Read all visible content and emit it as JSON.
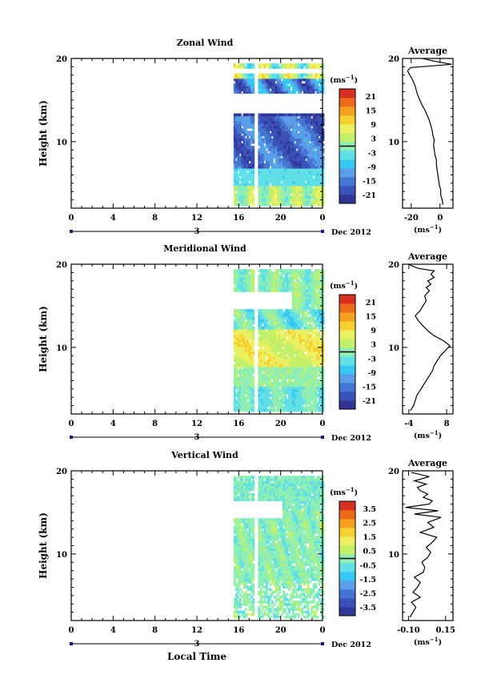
{
  "chart_data": [
    {
      "type": "heatmap",
      "title": "Zonal Wind",
      "ylabel": "Height (km)",
      "x_ticks": [
        "0",
        "4",
        "8",
        "12",
        "16",
        "20",
        "0"
      ],
      "y_ticks": [
        "20",
        "10"
      ],
      "xlim_hours": [
        0,
        24
      ],
      "ylim_km": [
        2,
        20
      ],
      "data_start_hour": 15.5,
      "date_day": "3",
      "date_label": "Dec 2012",
      "colorbar": {
        "unit_label": "(ms",
        "unit_sup": "−1",
        "unit_close": ")",
        "ticks": [
          "21",
          "15",
          "9",
          "3",
          "-3",
          "-9",
          "-15",
          "-21"
        ],
        "colors": [
          "#313695",
          "#3a52b8",
          "#4575d0",
          "#5b9de6",
          "#36c8f0",
          "#60e0e6",
          "#8eeeb4",
          "#c2f06a",
          "#ecf060",
          "#f6d030",
          "#f5a020",
          "#ec6a1c",
          "#d83020"
        ]
      },
      "grid": false
    },
    {
      "type": "line",
      "title": "Average",
      "x_ticks": [
        "-20",
        "0"
      ],
      "y_ticks": [
        "20",
        "10"
      ],
      "xlim": [
        -26,
        9
      ],
      "ylim": [
        2,
        20
      ],
      "unit_label": "(ms",
      "unit_sup": "−1",
      "unit_close": ")",
      "series": [
        {
          "x": [
            2.0,
            1.5,
            0.5,
            0.5,
            -0.5,
            -1.0,
            -1.5,
            -2.0,
            -2.5,
            -2.5,
            -3.5,
            -4.0,
            -4.5,
            -4.0,
            -5.0,
            -5.5,
            -6.5,
            -7.5,
            -9.0,
            -10.5,
            -12.5,
            -14.0,
            -15.5,
            -16.5,
            -17.5,
            -18.5,
            -19.5,
            -21.0,
            -22.5,
            -20.5,
            8.0,
            -5.0,
            -12.0
          ],
          "y": [
            2.4,
            3.0,
            3.6,
            4.2,
            4.8,
            5.4,
            6.0,
            6.6,
            7.2,
            7.8,
            8.4,
            9.0,
            9.6,
            10.2,
            10.8,
            11.4,
            12.0,
            12.6,
            13.2,
            13.8,
            14.4,
            15.0,
            15.6,
            16.2,
            16.8,
            17.2,
            17.6,
            18.0,
            18.5,
            18.9,
            19.3,
            19.7,
            20.0
          ]
        }
      ]
    },
    {
      "type": "heatmap",
      "title": "Meridional Wind",
      "ylabel": "Height (km)",
      "x_ticks": [
        "0",
        "4",
        "8",
        "12",
        "16",
        "20",
        "0"
      ],
      "y_ticks": [
        "20",
        "10"
      ],
      "xlim_hours": [
        0,
        24
      ],
      "ylim_km": [
        2,
        20
      ],
      "data_start_hour": 15.5,
      "date_day": "3",
      "date_label": "Dec 2012",
      "colorbar": {
        "unit_label": "(ms",
        "unit_sup": "−1",
        "unit_close": ")",
        "ticks": [
          "21",
          "15",
          "9",
          "3",
          "-3",
          "-9",
          "-15",
          "-21"
        ],
        "colors": [
          "#313695",
          "#3a52b8",
          "#4575d0",
          "#5b9de6",
          "#36c8f0",
          "#60e0e6",
          "#8eeeb4",
          "#c2f06a",
          "#ecf060",
          "#f6d030",
          "#f5a020",
          "#ec6a1c",
          "#d83020"
        ]
      },
      "grid": false
    },
    {
      "type": "line",
      "title": "Average",
      "x_ticks": [
        "-4",
        "8"
      ],
      "y_ticks": [
        "20",
        "10"
      ],
      "xlim": [
        -6,
        10
      ],
      "ylim": [
        2,
        20
      ],
      "unit_label": "(ms",
      "unit_sup": "−1",
      "unit_close": ")",
      "series": [
        {
          "x": [
            -3.5,
            -2.5,
            -2.0,
            -1.5,
            -0.5,
            0.5,
            1.5,
            2.5,
            3.5,
            4.0,
            5.0,
            6.0,
            7.5,
            9.0,
            7.0,
            4.0,
            2.0,
            0.5,
            -1.0,
            -2.0,
            -0.5,
            0.5,
            1.5,
            1.0,
            2.5,
            1.5,
            3.0,
            2.0,
            4.0,
            3.0,
            4.0,
            -1.0,
            -3.0,
            -4.0
          ],
          "y": [
            2.4,
            3.0,
            3.6,
            4.2,
            4.8,
            5.4,
            6.0,
            6.6,
            7.2,
            7.8,
            8.4,
            9.0,
            9.6,
            10.2,
            10.8,
            11.4,
            12.0,
            12.6,
            13.2,
            13.8,
            14.4,
            15.0,
            15.6,
            16.2,
            16.8,
            17.2,
            17.6,
            18.0,
            18.4,
            18.8,
            19.2,
            19.5,
            19.8,
            20.0
          ]
        }
      ]
    },
    {
      "type": "heatmap",
      "title": "Vertical Wind",
      "ylabel": "Height (km)",
      "xlabel": "Local Time",
      "x_ticks": [
        "0",
        "4",
        "8",
        "12",
        "16",
        "20",
        "0"
      ],
      "y_ticks": [
        "20",
        "10"
      ],
      "xlim_hours": [
        0,
        24
      ],
      "ylim_km": [
        2,
        20
      ],
      "data_start_hour": 15.5,
      "date_day": "3",
      "date_label": "Dec 2012",
      "colorbar": {
        "unit_label": "(ms",
        "unit_sup": "−1",
        "unit_close": ")",
        "ticks": [
          "3.5",
          "2.5",
          "1.5",
          "0.5",
          "-0.5",
          "-1.5",
          "-2.5",
          "-3.5"
        ],
        "colors": [
          "#313695",
          "#3a52b8",
          "#4575d0",
          "#5b9de6",
          "#36c8f0",
          "#60e0e6",
          "#8eeeb4",
          "#c2f06a",
          "#ecf060",
          "#f6d030",
          "#f5a020",
          "#ec6a1c",
          "#d83020"
        ]
      },
      "grid": false
    },
    {
      "type": "line",
      "title": "Average",
      "x_ticks": [
        "-0.10",
        "0.15"
      ],
      "y_ticks": [
        "20",
        "10"
      ],
      "xlim": [
        -0.14,
        0.2
      ],
      "ylim": [
        2,
        20
      ],
      "unit_label": "(ms",
      "unit_sup": "−1",
      "unit_close": ")",
      "series": [
        {
          "x": [
            -0.09,
            -0.07,
            -0.05,
            -0.08,
            -0.02,
            -0.07,
            -0.04,
            -0.02,
            -0.06,
            0.0,
            0.01,
            -0.01,
            0.03,
            0.05,
            0.02,
            0.06,
            0.09,
            -0.02,
            0.07,
            0.03,
            0.12,
            -0.06,
            0.1,
            -0.12,
            0.04,
            0.06,
            0.0,
            0.03,
            -0.02,
            -0.04,
            0.02,
            -0.06,
            0.04,
            -0.08
          ],
          "y": [
            2.4,
            3.0,
            3.6,
            4.2,
            4.8,
            5.4,
            6.0,
            6.6,
            7.2,
            7.8,
            8.4,
            9.0,
            9.6,
            10.2,
            10.8,
            11.4,
            12.0,
            12.6,
            13.2,
            13.8,
            14.4,
            14.8,
            15.2,
            15.6,
            16.0,
            16.4,
            16.8,
            17.2,
            17.6,
            18.0,
            18.4,
            18.8,
            19.3,
            19.8
          ]
        }
      ]
    }
  ]
}
